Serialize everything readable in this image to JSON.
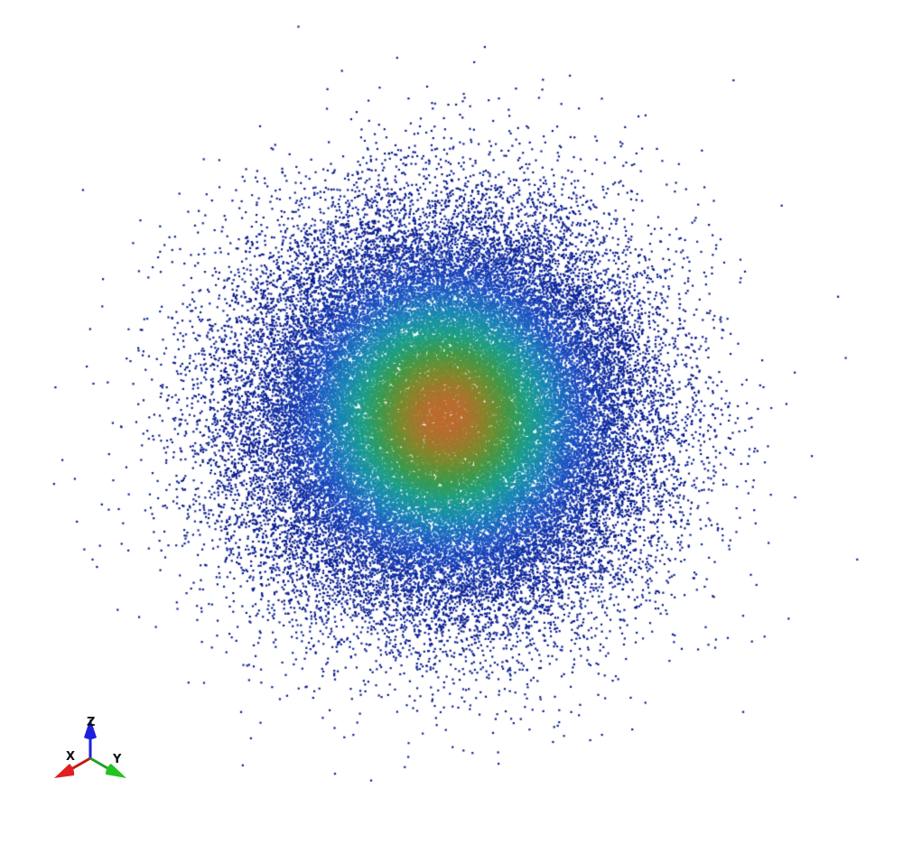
{
  "viewport": {
    "background": "#ffffff",
    "colormap": [
      "#0a1a8c",
      "#1f4fc4",
      "#1a86b8",
      "#1c9f8a",
      "#3f9a4a",
      "#7f8a2c",
      "#c06a30"
    ]
  },
  "orientation_axes": {
    "x_label": "X",
    "y_label": "Y",
    "z_label": "Z",
    "x_color": "#e02020",
    "y_color": "#22c422",
    "z_color": "#1f1fe0"
  }
}
